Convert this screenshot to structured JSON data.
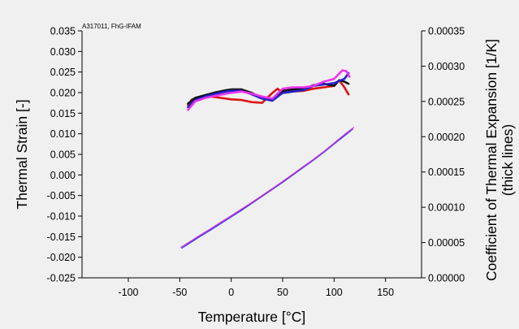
{
  "chart_data": {
    "type": "line",
    "annotation": "A317011, FhG-IFAM",
    "xlabel": "Temperature [°C]",
    "ylabel_left": "Thermal Strain [-]",
    "ylabel_right_line1": "Coefficient of Thermal Expansion [1/K]",
    "ylabel_right_line2": "(thick lines)",
    "xlim": [
      -145,
      185
    ],
    "ylim_left": [
      -0.025,
      0.035
    ],
    "ylim_right": [
      0.0,
      0.00035
    ],
    "grid": false,
    "legend": "none",
    "x_ticks": [
      "-100",
      "-50",
      "0",
      "50",
      "100",
      "150"
    ],
    "x_tick_values": [
      -100,
      -50,
      0,
      50,
      100,
      150
    ],
    "y_left_ticks": [
      "0.035",
      "0.030",
      "0.025",
      "0.020",
      "0.015",
      "0.010",
      "0.005",
      "0.000",
      "-0.005",
      "-0.010",
      "-0.015",
      "-0.020",
      "-0.025"
    ],
    "y_left_tick_values": [
      0.035,
      0.03,
      0.025,
      0.02,
      0.015,
      0.01,
      0.005,
      0.0,
      -0.005,
      -0.01,
      -0.015,
      -0.02,
      -0.025
    ],
    "y_right_ticks": [
      "0.00035",
      "0.00030",
      "0.00025",
      "0.00020",
      "0.00015",
      "0.00010",
      "0.00005",
      "0.00000"
    ],
    "y_right_tick_values": [
      0.00035,
      0.0003,
      0.00025,
      0.0002,
      0.00015,
      0.0001,
      5e-05,
      0.0
    ],
    "series": [
      {
        "axis": "left",
        "style": "thin",
        "color": "#3333ff",
        "x": [
          -48,
          -40,
          -30,
          -20,
          -10,
          0,
          10,
          20,
          30,
          40,
          50,
          60,
          70,
          80,
          90,
          100,
          110,
          118
        ],
        "y": [
          -0.0178,
          -0.0165,
          -0.0149,
          -0.0134,
          -0.0118,
          -0.0102,
          -0.0086,
          -0.0069,
          -0.0052,
          -0.0035,
          -0.0018,
          0.0,
          0.0018,
          0.0036,
          0.0055,
          0.0075,
          0.0095,
          0.0111
        ]
      },
      {
        "axis": "left",
        "style": "thin",
        "color": "#cc33cc",
        "x": [
          -49,
          -40,
          -30,
          -20,
          -10,
          0,
          10,
          20,
          30,
          40,
          50,
          60,
          70,
          80,
          90,
          100,
          110,
          119
        ],
        "y": [
          -0.0176,
          -0.0162,
          -0.0146,
          -0.0131,
          -0.0115,
          -0.0099,
          -0.0083,
          -0.0067,
          -0.005,
          -0.0033,
          -0.0016,
          0.0002,
          0.002,
          0.0038,
          0.0057,
          0.0077,
          0.0098,
          0.0115
        ]
      },
      {
        "axis": "right",
        "style": "thick",
        "color": "#dd1111",
        "x": [
          -42,
          -38,
          -30,
          -20,
          -10,
          0,
          10,
          20,
          30,
          40,
          45,
          50,
          60,
          70,
          80,
          90,
          100,
          105,
          110,
          114
        ],
        "y": [
          0.000245,
          0.000253,
          0.000255,
          0.000257,
          0.000255,
          0.000253,
          0.000252,
          0.000249,
          0.000248,
          0.000262,
          0.000268,
          0.000262,
          0.000264,
          0.000265,
          0.000268,
          0.00027,
          0.000272,
          0.00028,
          0.00027,
          0.00026
        ]
      },
      {
        "axis": "right",
        "style": "thick",
        "color": "#111111",
        "x": [
          -42,
          -35,
          -25,
          -15,
          -5,
          0,
          10,
          20,
          30,
          40,
          50,
          60,
          70,
          80,
          90,
          100,
          105,
          110,
          114
        ],
        "y": [
          0.000247,
          0.000255,
          0.000259,
          0.000263,
          0.000266,
          0.000267,
          0.000267,
          0.000262,
          0.000255,
          0.000252,
          0.000265,
          0.000267,
          0.000268,
          0.000273,
          0.000275,
          0.000272,
          0.00028,
          0.000278,
          0.000275
        ]
      },
      {
        "axis": "right",
        "style": "thick",
        "color": "#2222cc",
        "x": [
          -42,
          -35,
          -25,
          -15,
          -5,
          0,
          10,
          20,
          30,
          40,
          50,
          60,
          70,
          80,
          90,
          100,
          110,
          114
        ],
        "y": [
          0.000242,
          0.000252,
          0.000257,
          0.000261,
          0.000264,
          0.000265,
          0.000265,
          0.00026,
          0.000254,
          0.000251,
          0.000262,
          0.000264,
          0.000266,
          0.000272,
          0.000274,
          0.000276,
          0.000282,
          0.00029
        ]
      },
      {
        "axis": "right",
        "style": "thick",
        "color": "#ee33ee",
        "x": [
          -42,
          -35,
          -25,
          -15,
          -5,
          0,
          10,
          20,
          30,
          40,
          50,
          60,
          70,
          80,
          90,
          100,
          108,
          112,
          115
        ],
        "y": [
          0.000238,
          0.00025,
          0.000255,
          0.000258,
          0.000261,
          0.000262,
          0.000264,
          0.000261,
          0.000257,
          0.000254,
          0.000268,
          0.00027,
          0.00027,
          0.000272,
          0.000278,
          0.000282,
          0.000294,
          0.000293,
          0.000285
        ]
      }
    ]
  }
}
